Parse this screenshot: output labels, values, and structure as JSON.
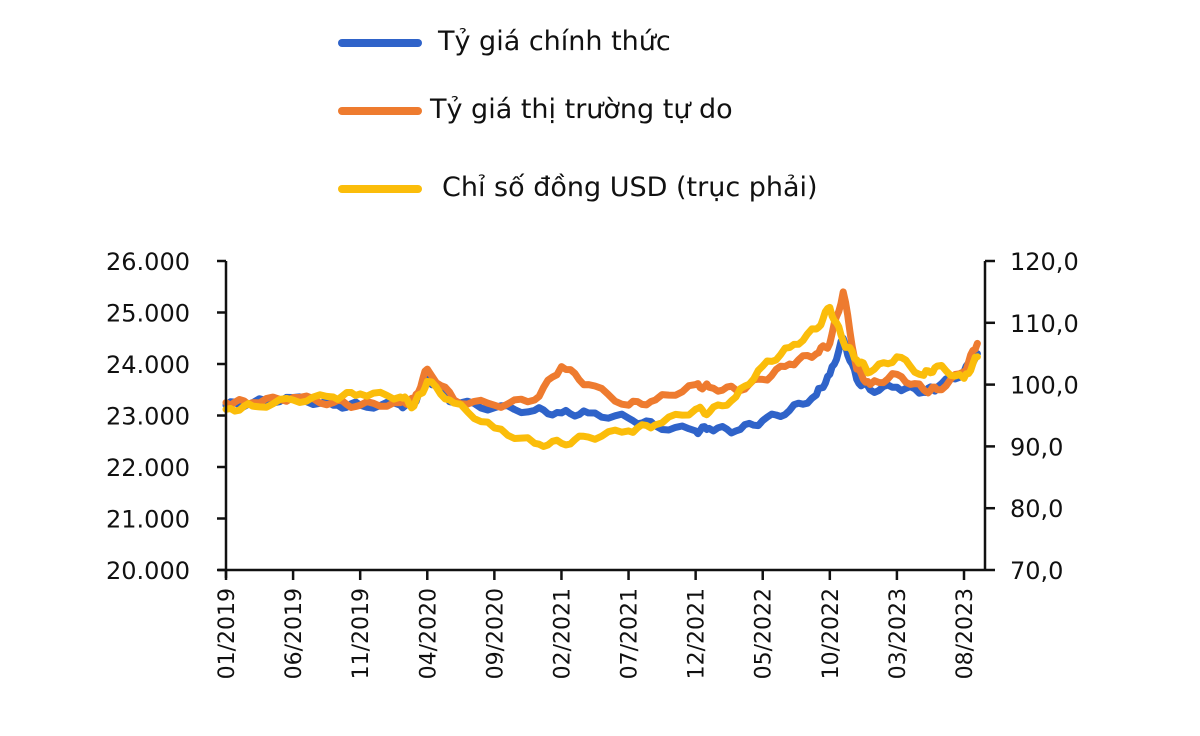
{
  "legend": [
    {
      "label": "Tỷ giá chính thức",
      "color": "#2f63c9"
    },
    {
      "label": "Tỷ giá thị trường tự do",
      "color": "#ee7b2f"
    },
    {
      "label": "Chỉ số đồng USD (trục phải)",
      "color": "#fbbd0a"
    }
  ],
  "chart_data": {
    "type": "line",
    "title": "",
    "xlabel": "",
    "ylabel_left": "",
    "ylabel_right": "",
    "grid": false,
    "legend_position": "top",
    "x_tick_labels": [
      "01/2019",
      "06/2019",
      "11/2019",
      "04/2020",
      "09/2020",
      "02/2021",
      "07/2021",
      "12/2021",
      "05/2022",
      "10/2022",
      "03/2023",
      "08/2023"
    ],
    "y_left": {
      "ticks": [
        "20.000",
        "21.000",
        "22.000",
        "23.000",
        "24.000",
        "25.000",
        "26.000"
      ],
      "range": [
        20000,
        26000
      ]
    },
    "y_right": {
      "ticks": [
        "70,0",
        "80,0",
        "90,0",
        "100,0",
        "110,0",
        "120,0"
      ],
      "range": [
        70,
        120
      ]
    },
    "x": [
      "01/2019",
      "03/2019",
      "06/2019",
      "09/2019",
      "11/2019",
      "02/2020",
      "03/2020",
      "04/2020",
      "06/2020",
      "09/2020",
      "12/2020",
      "02/2021",
      "04/2021",
      "07/2021",
      "09/2021",
      "12/2021",
      "01/2022",
      "03/2022",
      "05/2022",
      "07/2022",
      "09/2022",
      "10/2022",
      "11/2022",
      "12/2022",
      "01/2023",
      "03/2023",
      "05/2023",
      "06/2023",
      "08/2023",
      "09/2023"
    ],
    "series": [
      {
        "name": "Tỷ giá chính thức",
        "axis": "left",
        "color": "#2f63c9",
        "values": [
          23200,
          23250,
          23350,
          23200,
          23200,
          23200,
          23250,
          23700,
          23250,
          23150,
          23100,
          23050,
          23050,
          22950,
          22800,
          22700,
          22750,
          22700,
          22900,
          23100,
          23400,
          23800,
          24500,
          23700,
          23500,
          23550,
          23450,
          23550,
          23850,
          24200
        ]
      },
      {
        "name": "Tỷ giá thị trường tự do",
        "axis": "left",
        "color": "#ee7b2f",
        "values": [
          23250,
          23250,
          23350,
          23250,
          23200,
          23250,
          23300,
          23900,
          23300,
          23200,
          23300,
          23950,
          23600,
          23200,
          23300,
          23600,
          23550,
          23500,
          23700,
          24000,
          24200,
          24400,
          25400,
          23900,
          23600,
          23800,
          23500,
          23500,
          23850,
          24400
        ]
      },
      {
        "name": "Chỉ số đồng USD (trục phải)",
        "axis": "right",
        "color": "#fbbd0a",
        "values": [
          96.0,
          96.5,
          97.5,
          98.0,
          98.5,
          98.0,
          96.5,
          100.5,
          97.0,
          93.0,
          90.5,
          90.5,
          91.5,
          92.5,
          93.5,
          96.0,
          95.5,
          98.0,
          103.0,
          106.0,
          109.0,
          112.5,
          107.0,
          104.0,
          102.0,
          104.5,
          101.5,
          103.0,
          101.0,
          104.5
        ]
      }
    ]
  }
}
